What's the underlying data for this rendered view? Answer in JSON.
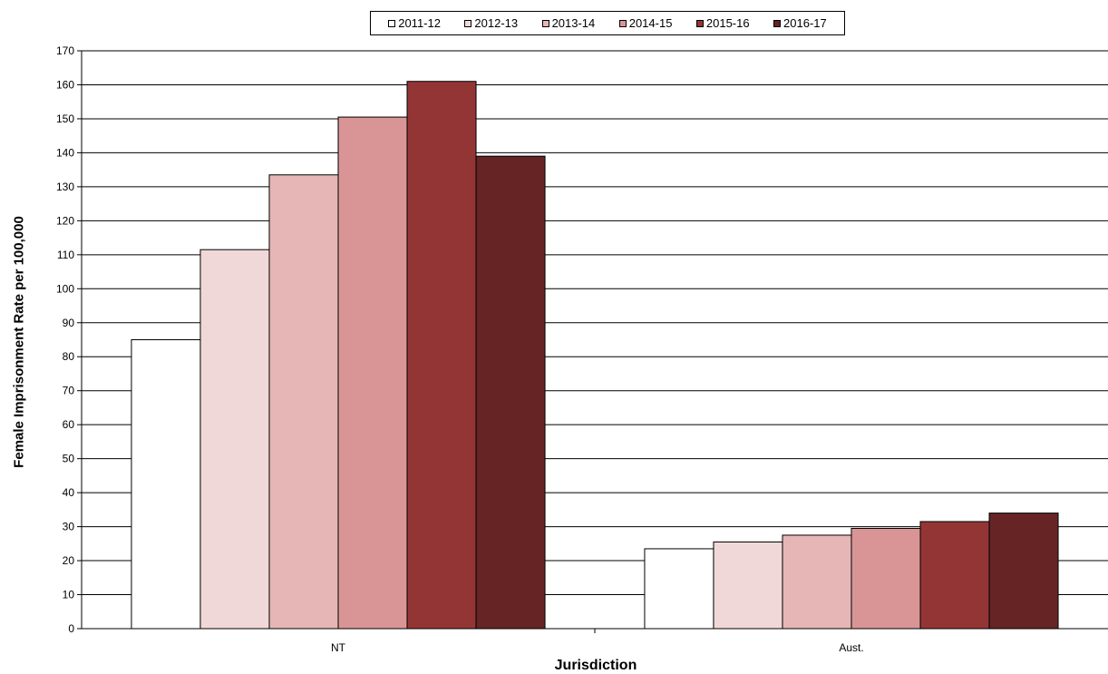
{
  "chart_data": {
    "type": "bar",
    "categories": [
      "NT",
      "Aust."
    ],
    "series": [
      {
        "name": "2011-12",
        "values": [
          85,
          23.5
        ],
        "color": "#ffffff"
      },
      {
        "name": "2012-13",
        "values": [
          111.5,
          25.5
        ],
        "color": "#f1d8d8"
      },
      {
        "name": "2013-14",
        "values": [
          133.5,
          27.5
        ],
        "color": "#e6b6b6"
      },
      {
        "name": "2014-15",
        "values": [
          150.5,
          29.5
        ],
        "color": "#d99595"
      },
      {
        "name": "2015-16",
        "values": [
          161,
          31.5
        ],
        "color": "#943535"
      },
      {
        "name": "2016-17",
        "values": [
          139,
          34
        ],
        "color": "#662424"
      }
    ],
    "xlabel": "Jurisdiction",
    "ylabel": "Female Imprisonment Rate per 100,000",
    "ylim": [
      0,
      170
    ],
    "yticks": [
      0,
      10,
      20,
      30,
      40,
      50,
      60,
      70,
      80,
      90,
      100,
      110,
      120,
      130,
      140,
      150,
      160,
      170
    ],
    "grid": true,
    "legend_position": "top"
  }
}
